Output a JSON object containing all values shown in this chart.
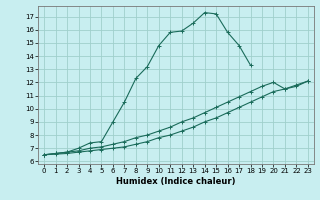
{
  "xlabel": "Humidex (Indice chaleur)",
  "bg_color": "#c8eef0",
  "grid_color": "#a0d0cc",
  "line_color": "#1a6b5a",
  "xlim": [
    -0.5,
    23.5
  ],
  "ylim": [
    5.8,
    17.8
  ],
  "xticks": [
    0,
    1,
    2,
    3,
    4,
    5,
    6,
    7,
    8,
    9,
    10,
    11,
    12,
    13,
    14,
    15,
    16,
    17,
    18,
    19,
    20,
    21,
    22,
    23
  ],
  "yticks": [
    6,
    7,
    8,
    9,
    10,
    11,
    12,
    13,
    14,
    15,
    16,
    17
  ],
  "line1_x": [
    0,
    1,
    2,
    3,
    4,
    5,
    6,
    7,
    8,
    9,
    10,
    11,
    12,
    13,
    14,
    15,
    16,
    17,
    18
  ],
  "line1_y": [
    6.5,
    6.6,
    6.7,
    7.0,
    7.4,
    7.5,
    9.0,
    10.5,
    12.3,
    13.2,
    14.8,
    15.8,
    15.9,
    16.5,
    17.3,
    17.2,
    15.8,
    14.8,
    13.3
  ],
  "line2_x": [
    0,
    1,
    2,
    3,
    4,
    5,
    6,
    7,
    8,
    9,
    10,
    11,
    12,
    13,
    14,
    15,
    16,
    17,
    18,
    19,
    20,
    21,
    22,
    23
  ],
  "line2_y": [
    6.5,
    6.6,
    6.7,
    6.8,
    7.0,
    7.1,
    7.3,
    7.5,
    7.8,
    8.0,
    8.3,
    8.6,
    9.0,
    9.3,
    9.7,
    10.1,
    10.5,
    10.9,
    11.3,
    11.7,
    12.0,
    11.5,
    11.7,
    12.1
  ],
  "line3_x": [
    0,
    1,
    2,
    3,
    4,
    5,
    6,
    7,
    8,
    9,
    10,
    11,
    12,
    13,
    14,
    15,
    16,
    17,
    18,
    19,
    20,
    21,
    22,
    23
  ],
  "line3_y": [
    6.5,
    6.55,
    6.6,
    6.7,
    6.8,
    6.9,
    7.0,
    7.1,
    7.3,
    7.5,
    7.8,
    8.0,
    8.3,
    8.6,
    9.0,
    9.3,
    9.7,
    10.1,
    10.5,
    10.9,
    11.3,
    11.5,
    11.8,
    12.1
  ]
}
